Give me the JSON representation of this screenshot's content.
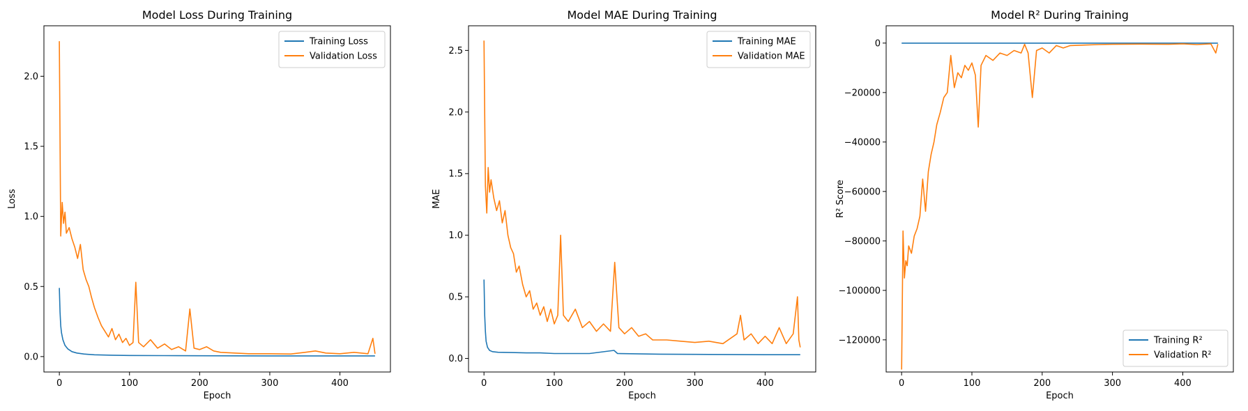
{
  "colors": {
    "training": "#1f77b4",
    "validation": "#ff7f0e",
    "axes": "#000000"
  },
  "chart_data": [
    {
      "type": "line",
      "title": "Model Loss During Training",
      "xlabel": "Epoch",
      "ylabel": "Loss",
      "xlim": [
        -22,
        472
      ],
      "ylim": [
        -0.11,
        2.36
      ],
      "xticks": [
        0,
        100,
        200,
        300,
        400
      ],
      "yticks": [
        0.0,
        0.5,
        1.0,
        1.5,
        2.0
      ],
      "ytick_labels": [
        "0.0",
        "0.5",
        "1.0",
        "1.5",
        "2.0"
      ],
      "legend_position": "top-right",
      "grid": false,
      "series": [
        {
          "name": "Training Loss",
          "color_key": "training",
          "points": [
            [
              0,
              0.49
            ],
            [
              1,
              0.32
            ],
            [
              2,
              0.22
            ],
            [
              3,
              0.17
            ],
            [
              5,
              0.12
            ],
            [
              8,
              0.08
            ],
            [
              12,
              0.055
            ],
            [
              18,
              0.035
            ],
            [
              25,
              0.025
            ],
            [
              35,
              0.018
            ],
            [
              50,
              0.013
            ],
            [
              75,
              0.01
            ],
            [
              100,
              0.008
            ],
            [
              150,
              0.007
            ],
            [
              200,
              0.006
            ],
            [
              300,
              0.005
            ],
            [
              400,
              0.005
            ],
            [
              450,
              0.005
            ]
          ]
        },
        {
          "name": "Validation Loss",
          "color_key": "validation",
          "points": [
            [
              0,
              2.25
            ],
            [
              2,
              0.86
            ],
            [
              4,
              1.1
            ],
            [
              6,
              0.95
            ],
            [
              8,
              1.03
            ],
            [
              10,
              0.88
            ],
            [
              14,
              0.92
            ],
            [
              18,
              0.84
            ],
            [
              22,
              0.78
            ],
            [
              26,
              0.7
            ],
            [
              30,
              0.8
            ],
            [
              34,
              0.62
            ],
            [
              38,
              0.55
            ],
            [
              42,
              0.5
            ],
            [
              46,
              0.42
            ],
            [
              50,
              0.35
            ],
            [
              55,
              0.28
            ],
            [
              60,
              0.22
            ],
            [
              65,
              0.18
            ],
            [
              70,
              0.14
            ],
            [
              75,
              0.2
            ],
            [
              80,
              0.12
            ],
            [
              85,
              0.16
            ],
            [
              90,
              0.1
            ],
            [
              95,
              0.13
            ],
            [
              100,
              0.08
            ],
            [
              105,
              0.1
            ],
            [
              109,
              0.53
            ],
            [
              113,
              0.1
            ],
            [
              120,
              0.07
            ],
            [
              130,
              0.12
            ],
            [
              140,
              0.06
            ],
            [
              150,
              0.09
            ],
            [
              160,
              0.05
            ],
            [
              170,
              0.07
            ],
            [
              180,
              0.04
            ],
            [
              186,
              0.34
            ],
            [
              192,
              0.06
            ],
            [
              200,
              0.05
            ],
            [
              210,
              0.07
            ],
            [
              220,
              0.04
            ],
            [
              230,
              0.03
            ],
            [
              250,
              0.025
            ],
            [
              270,
              0.02
            ],
            [
              300,
              0.02
            ],
            [
              330,
              0.018
            ],
            [
              350,
              0.03
            ],
            [
              365,
              0.04
            ],
            [
              380,
              0.025
            ],
            [
              400,
              0.02
            ],
            [
              420,
              0.03
            ],
            [
              440,
              0.02
            ],
            [
              447,
              0.13
            ],
            [
              450,
              0.02
            ]
          ]
        }
      ]
    },
    {
      "type": "line",
      "title": "Model MAE During Training",
      "xlabel": "Epoch",
      "ylabel": "MAE",
      "xlim": [
        -22,
        472
      ],
      "ylim": [
        -0.11,
        2.7
      ],
      "xticks": [
        0,
        100,
        200,
        300,
        400
      ],
      "yticks": [
        0.0,
        0.5,
        1.0,
        1.5,
        2.0,
        2.5
      ],
      "ytick_labels": [
        "0.0",
        "0.5",
        "1.0",
        "1.5",
        "2.0",
        "2.5"
      ],
      "legend_position": "top-right",
      "grid": false,
      "series": [
        {
          "name": "Training MAE",
          "color_key": "training",
          "points": [
            [
              0,
              0.64
            ],
            [
              1,
              0.35
            ],
            [
              2,
              0.22
            ],
            [
              3,
              0.14
            ],
            [
              5,
              0.09
            ],
            [
              8,
              0.065
            ],
            [
              12,
              0.055
            ],
            [
              20,
              0.05
            ],
            [
              40,
              0.048
            ],
            [
              60,
              0.045
            ],
            [
              80,
              0.045
            ],
            [
              100,
              0.04
            ],
            [
              150,
              0.04
            ],
            [
              185,
              0.065
            ],
            [
              190,
              0.04
            ],
            [
              250,
              0.035
            ],
            [
              300,
              0.033
            ],
            [
              350,
              0.032
            ],
            [
              400,
              0.03
            ],
            [
              450,
              0.03
            ]
          ]
        },
        {
          "name": "Validation MAE",
          "color_key": "validation",
          "points": [
            [
              0,
              2.58
            ],
            [
              2,
              1.4
            ],
            [
              4,
              1.18
            ],
            [
              6,
              1.55
            ],
            [
              8,
              1.35
            ],
            [
              10,
              1.45
            ],
            [
              14,
              1.3
            ],
            [
              18,
              1.2
            ],
            [
              22,
              1.28
            ],
            [
              26,
              1.1
            ],
            [
              30,
              1.2
            ],
            [
              34,
              1.0
            ],
            [
              38,
              0.9
            ],
            [
              42,
              0.85
            ],
            [
              46,
              0.7
            ],
            [
              50,
              0.75
            ],
            [
              55,
              0.6
            ],
            [
              60,
              0.5
            ],
            [
              65,
              0.55
            ],
            [
              70,
              0.4
            ],
            [
              75,
              0.45
            ],
            [
              80,
              0.35
            ],
            [
              85,
              0.42
            ],
            [
              90,
              0.3
            ],
            [
              95,
              0.4
            ],
            [
              100,
              0.28
            ],
            [
              105,
              0.35
            ],
            [
              109,
              1.0
            ],
            [
              113,
              0.35
            ],
            [
              120,
              0.3
            ],
            [
              130,
              0.4
            ],
            [
              140,
              0.25
            ],
            [
              150,
              0.3
            ],
            [
              160,
              0.22
            ],
            [
              170,
              0.28
            ],
            [
              180,
              0.22
            ],
            [
              186,
              0.78
            ],
            [
              192,
              0.25
            ],
            [
              200,
              0.2
            ],
            [
              210,
              0.25
            ],
            [
              220,
              0.18
            ],
            [
              230,
              0.2
            ],
            [
              240,
              0.15
            ],
            [
              260,
              0.15
            ],
            [
              280,
              0.14
            ],
            [
              300,
              0.13
            ],
            [
              320,
              0.14
            ],
            [
              340,
              0.12
            ],
            [
              360,
              0.2
            ],
            [
              365,
              0.35
            ],
            [
              370,
              0.15
            ],
            [
              380,
              0.2
            ],
            [
              390,
              0.12
            ],
            [
              400,
              0.18
            ],
            [
              410,
              0.12
            ],
            [
              420,
              0.25
            ],
            [
              430,
              0.12
            ],
            [
              440,
              0.2
            ],
            [
              446,
              0.5
            ],
            [
              448,
              0.15
            ],
            [
              450,
              0.09
            ]
          ]
        }
      ]
    },
    {
      "type": "line",
      "title": "Model R² During Training",
      "xlabel": "Epoch",
      "ylabel": "R² Score",
      "xlim": [
        -22,
        472
      ],
      "ylim": [
        -133000,
        7000
      ],
      "xticks": [
        0,
        100,
        200,
        300,
        400
      ],
      "yticks": [
        0,
        -20000,
        -40000,
        -60000,
        -80000,
        -100000,
        -120000
      ],
      "ytick_labels": [
        "0",
        "−20000",
        "−40000",
        "−60000",
        "−80000",
        "−100000",
        "−120000"
      ],
      "legend_position": "bottom-right",
      "grid": false,
      "series": [
        {
          "name": "Training R²",
          "color_key": "training",
          "points": [
            [
              0,
              0
            ],
            [
              100,
              0
            ],
            [
              200,
              0
            ],
            [
              300,
              0
            ],
            [
              400,
              0
            ],
            [
              450,
              0
            ]
          ]
        },
        {
          "name": "Validation R²",
          "color_key": "validation",
          "points": [
            [
              0,
              -132000
            ],
            [
              2,
              -76000
            ],
            [
              4,
              -95000
            ],
            [
              6,
              -88000
            ],
            [
              8,
              -90000
            ],
            [
              10,
              -82000
            ],
            [
              14,
              -85000
            ],
            [
              18,
              -78000
            ],
            [
              22,
              -75000
            ],
            [
              26,
              -70000
            ],
            [
              30,
              -55000
            ],
            [
              34,
              -68000
            ],
            [
              38,
              -52000
            ],
            [
              42,
              -45000
            ],
            [
              46,
              -40000
            ],
            [
              50,
              -33000
            ],
            [
              55,
              -28000
            ],
            [
              60,
              -22000
            ],
            [
              65,
              -20000
            ],
            [
              70,
              -5000
            ],
            [
              75,
              -18000
            ],
            [
              80,
              -12000
            ],
            [
              85,
              -14000
            ],
            [
              90,
              -9000
            ],
            [
              95,
              -11000
            ],
            [
              100,
              -8000
            ],
            [
              105,
              -13000
            ],
            [
              109,
              -34000
            ],
            [
              113,
              -9000
            ],
            [
              120,
              -5000
            ],
            [
              130,
              -7000
            ],
            [
              140,
              -4000
            ],
            [
              150,
              -5000
            ],
            [
              160,
              -3000
            ],
            [
              170,
              -4000
            ],
            [
              175,
              -500
            ],
            [
              180,
              -4000
            ],
            [
              186,
              -22000
            ],
            [
              192,
              -3000
            ],
            [
              200,
              -2000
            ],
            [
              210,
              -4000
            ],
            [
              220,
              -1000
            ],
            [
              230,
              -2000
            ],
            [
              240,
              -1000
            ],
            [
              260,
              -800
            ],
            [
              280,
              -600
            ],
            [
              300,
              -500
            ],
            [
              340,
              -400
            ],
            [
              380,
              -500
            ],
            [
              400,
              -300
            ],
            [
              420,
              -600
            ],
            [
              440,
              -300
            ],
            [
              447,
              -4000
            ],
            [
              450,
              -400
            ]
          ]
        }
      ]
    }
  ]
}
